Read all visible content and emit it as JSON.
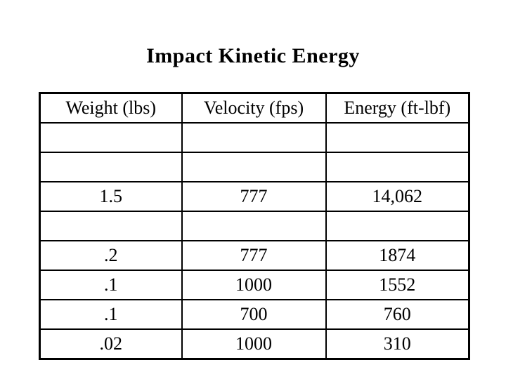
{
  "slide": {
    "title": "Impact Kinetic Energy",
    "background_color": "#ffffff",
    "text_color": "#000000",
    "border_color": "#000000"
  },
  "table": {
    "columns": [
      "Weight (lbs)",
      "Velocity (fps)",
      "Energy (ft-lbf)"
    ],
    "rows": [
      [
        "",
        "",
        ""
      ],
      [
        "",
        "",
        ""
      ],
      [
        "1.5",
        "777",
        "14,062"
      ],
      [
        "",
        "",
        ""
      ],
      [
        ".2",
        "777",
        "1874"
      ],
      [
        ".1",
        "1000",
        "1552"
      ],
      [
        ".1",
        "700",
        "760"
      ],
      [
        ".02",
        "1000",
        "310"
      ]
    ]
  }
}
